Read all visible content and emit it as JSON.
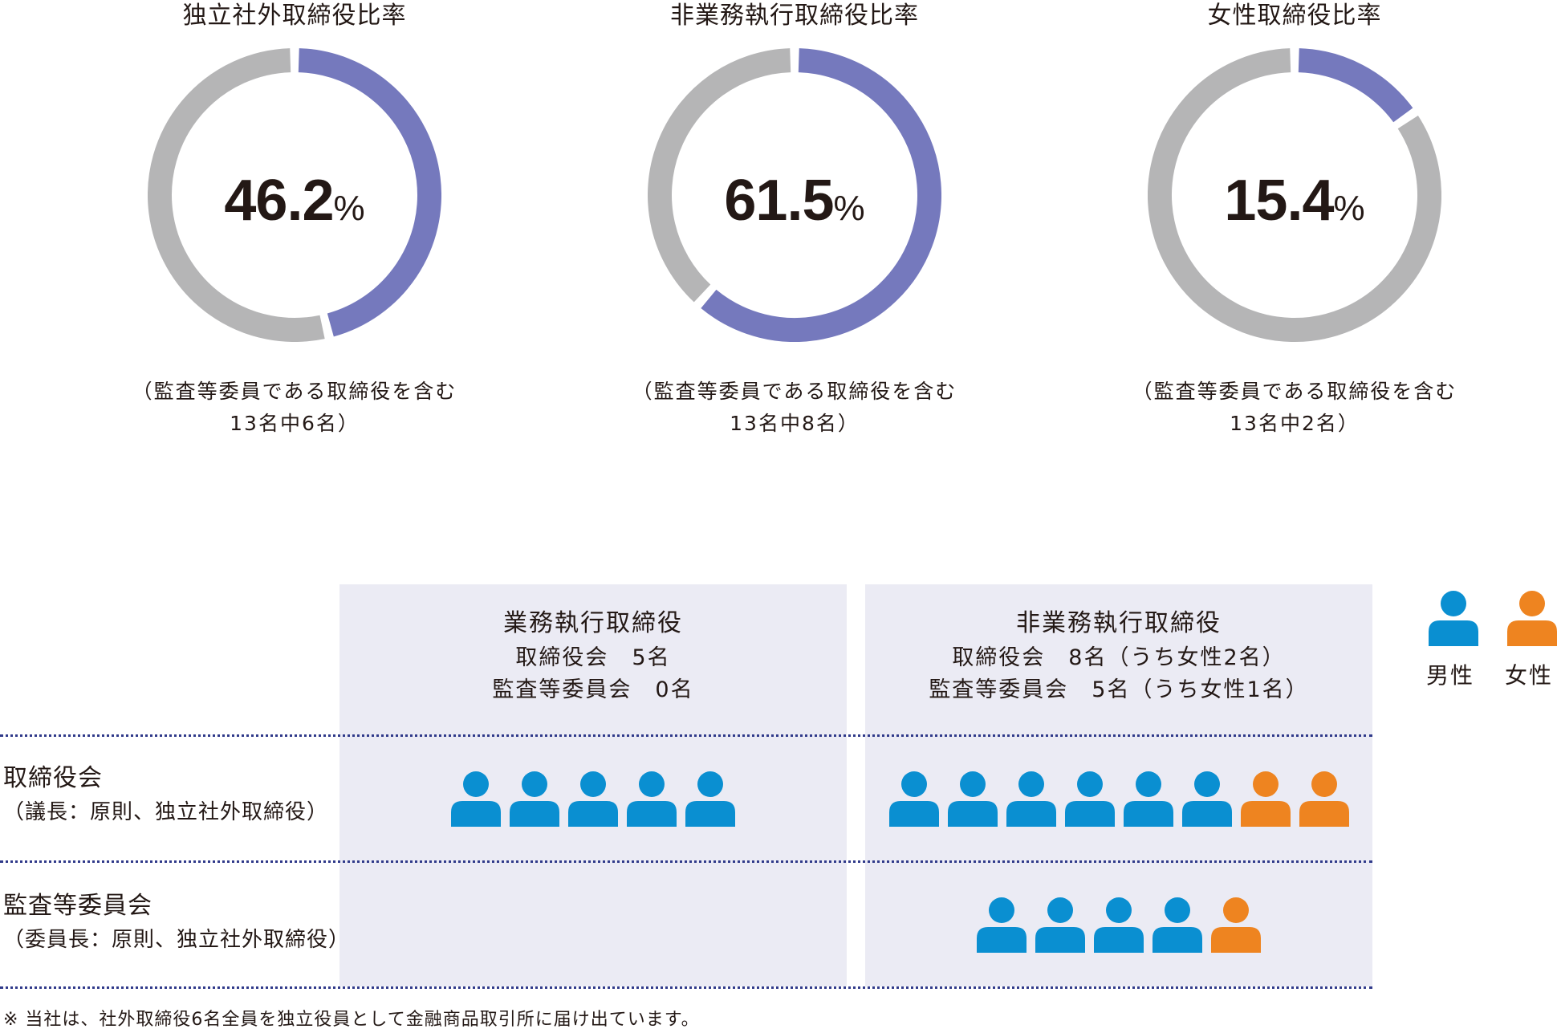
{
  "colors": {
    "accent": "#7579bd",
    "rest": "#b5b5b6",
    "male": "#0a8fd1",
    "female": "#ee8420",
    "panel_bg": "#ebebf4",
    "dotted_rule": "#303a8a"
  },
  "chart_data": [
    {
      "type": "pie",
      "title": "独立社外取締役比率",
      "value": 46.2,
      "value_text": "46.2",
      "unit": "%",
      "note_line1": "（監査等委員である取締役を含む",
      "note_line2": "13名中6名）"
    },
    {
      "type": "pie",
      "title": "非業務執行取締役比率",
      "value": 61.5,
      "value_text": "61.5",
      "unit": "%",
      "note_line1": "（監査等委員である取締役を含む",
      "note_line2": "13名中8名）"
    },
    {
      "type": "pie",
      "title": "女性取締役比率",
      "value": 15.4,
      "value_text": "15.4",
      "unit": "%",
      "note_line1": "（監査等委員である取締役を含む",
      "note_line2": "13名中2名）"
    }
  ],
  "composition": {
    "columns": [
      {
        "title": "業務執行取締役",
        "line1": "取締役会　5名",
        "line2": "監査等委員会　0名"
      },
      {
        "title": "非業務執行取締役",
        "line1": "取締役会　8名（うち女性2名）",
        "line2": "監査等委員会　5名（うち女性1名）"
      }
    ],
    "rows": [
      {
        "title": "取締役会",
        "subtitle": "（議長：原則、独立社外取締役）",
        "executive": [
          "male",
          "male",
          "male",
          "male",
          "male"
        ],
        "non_executive": [
          "male",
          "male",
          "male",
          "male",
          "male",
          "male",
          "female",
          "female"
        ]
      },
      {
        "title": "監査等委員会",
        "subtitle": "（委員長：原則、独立社外取締役）",
        "executive": [],
        "non_executive": [
          "male",
          "male",
          "male",
          "male",
          "female"
        ]
      }
    ]
  },
  "legend": {
    "male_label": "男性",
    "female_label": "女性"
  },
  "footnote": "※ 当社は、社外取締役6名全員を独立役員として金融商品取引所に届け出ています。"
}
